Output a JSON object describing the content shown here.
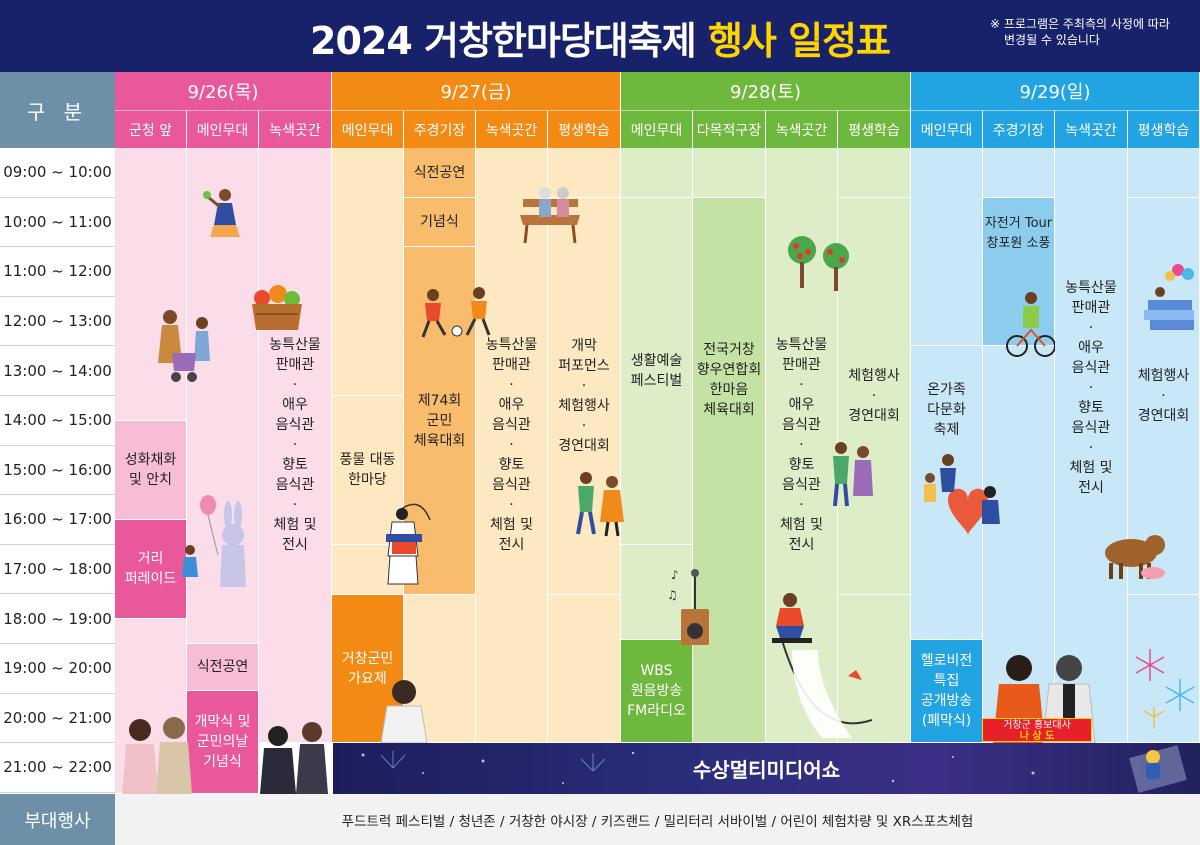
{
  "header": {
    "title_pre": "2024 거창한마당대축제",
    "title_hl": "행사 일정표",
    "notice_1": "※ 프로그램은 주최측의 사정에 따라",
    "notice_2": "변경될 수 있습니다"
  },
  "grid": {
    "label": "구 분",
    "times": [
      "09:00 ~ 10:00",
      "10:00 ~ 11:00",
      "11:00 ~ 12:00",
      "12:00 ~ 13:00",
      "13:00 ~ 14:00",
      "14:00 ~ 15:00",
      "15:00 ~ 16:00",
      "16:00 ~ 17:00",
      "17:00 ~ 18:00",
      "18:00 ~ 19:00",
      "19:00 ~ 20:00",
      "20:00 ~ 21:00",
      "21:00 ~ 22:00"
    ]
  },
  "days": [
    {
      "label": "9/26(목)",
      "color": "#e8589a",
      "venues": [
        "군청 앞",
        "메인무대",
        "녹색곳간"
      ]
    },
    {
      "label": "9/27(금)",
      "color": "#f28a14",
      "venues": [
        "메인무대",
        "주경기장",
        "녹색곳간",
        "평생학습"
      ]
    },
    {
      "label": "9/28(토)",
      "color": "#6fb83e",
      "venues": [
        "메인무대",
        "다목적구장",
        "녹색곳간",
        "평생학습"
      ]
    },
    {
      "label": "9/29(일)",
      "color": "#22a3e2",
      "venues": [
        "메인무대",
        "주경기장",
        "녹색곳간",
        "평생학습"
      ]
    }
  ],
  "events": {
    "d1_square_1": "성화채화\n및 안치",
    "d1_square_2": "거리\n퍼레이드",
    "d1_main_1": "식전공연",
    "d1_main_2": "개막식 및\n군민의날\n기념식",
    "d1_green": "농특산물\n판매관\n·\n애우\n음식관\n·\n향토\n음식관\n·\n체험 및\n전시",
    "d2_main_1": "풍물 대동\n한마당",
    "d2_main_2": "거창군민\n가요제",
    "d2_stadium_1": "식전공연",
    "d2_stadium_2": "기념식",
    "d2_stadium_3": "제74회\n군민\n체육대회",
    "d2_green": "농특산물\n판매관\n·\n애우\n음식관\n·\n향토\n음식관\n·\n체험 및\n전시",
    "d2_learn": "개막\n퍼포먼스\n·\n체험행사\n·\n경연대회",
    "d3_main_1": "생활예술\n페스티벌",
    "d3_main_2": "WBS\n원음방송\nFM라디오",
    "d3_field": "전국거창\n향우연합회\n한마음\n체육대회",
    "d3_green": "농특산물\n판매관\n·\n애우\n음식관\n·\n향토\n음식관\n·\n체험 및\n전시",
    "d3_learn": "체험행사\n·\n경연대회",
    "d4_main_1": "온가족\n다문화\n축제",
    "d4_main_2": "헬로비전\n특집\n공개방송\n(폐막식)",
    "d4_stadium": "자전거 Tour\n창포원 소풍",
    "d4_green": "농특산물\n판매관\n·\n애우\n음식관\n·\n향토\n음식관\n·\n체험 및\n전시",
    "d4_learn": "체험행사\n·\n경연대회",
    "laser_show": "수상멀티미디어쇼",
    "ambassador_title": "거창군 홍보대사",
    "ambassador_name": "나 상 도"
  },
  "footer": {
    "label": "부대행사",
    "text": "푸드트럭 페스티벌 / 청년존 / 거창한 야시장 / 키즈랜드 / 밀리터리 서바이벌 / 어린이 체험차량 및 XR스포츠체험"
  },
  "colors": {
    "navy": "#17226a",
    "highlight_yellow": "#ffd400",
    "pink": "#e8589a",
    "orange": "#f28a14",
    "green": "#6fb83e",
    "sky": "#22a3e2",
    "slate": "#6e8fa8"
  }
}
